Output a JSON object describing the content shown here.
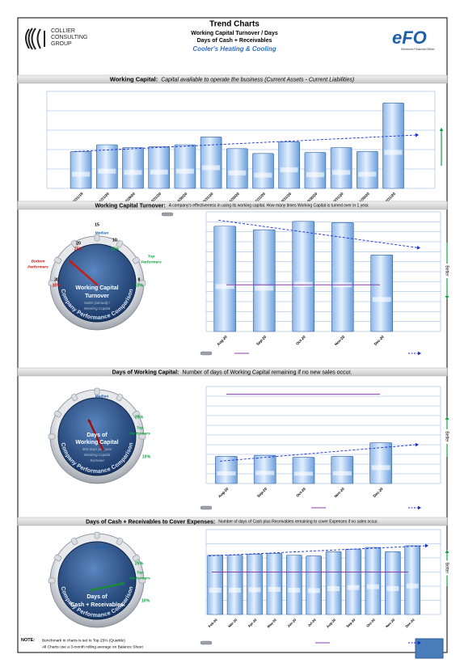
{
  "header": {
    "logo_lines": [
      "COLLIER",
      "CONSULTING",
      "GROUP"
    ],
    "title": "Trend Charts",
    "subtitle_lines": [
      "Working Capital Turnover / Days",
      "Days of Cash + Receivables"
    ],
    "company": "Cooler's Heating & Cooling",
    "efo_logo": "eFO",
    "efo_caption": "Electronic Financial Officer"
  },
  "chart_data": [
    {
      "type": "bar",
      "title": "Working Capital:",
      "subtitle": "Capital available to operate the business (Current Assets - Current Liabilities)",
      "categories": [
        "12/31/19",
        "1/31/20",
        "2/29/20",
        "3/31/20",
        "4/30/20",
        "5/31/20",
        "6/30/20",
        "7/31/20",
        "8/31/20",
        "9/30/20",
        "10/31/20",
        "11/30/20",
        "12/31/20"
      ],
      "values": [
        1.9,
        2.25,
        2.1,
        2.15,
        2.25,
        2.65,
        2.05,
        1.8,
        2.4,
        1.85,
        2.1,
        1.9,
        4.4
      ],
      "ylim": [
        0,
        5
      ],
      "trend": [
        1.9,
        2.75
      ],
      "grid": true,
      "better_direction": "up"
    },
    {
      "type": "bar",
      "title": "Working Capital Turnover:",
      "subtitle": "A company's effectiveness in using its working capital. How many times Working Capital is turned over in 1 year.",
      "categories": [
        "Aug-20",
        "Sep-20",
        "Oct-20",
        "Nov-20",
        "Dec-20"
      ],
      "values": [
        8.8,
        8.5,
        9.2,
        9.1,
        6.4
      ],
      "ylim": [
        0,
        10
      ],
      "benchmark": 3.9,
      "trend": [
        9.3,
        7.0
      ],
      "grid": true,
      "better_label": "Better",
      "better_direction": "down"
    },
    {
      "type": "bar",
      "title": "Days of Working Capital:",
      "subtitle": "Number of days of Working Capital remaining if no new sales occur.",
      "categories": [
        "Aug-20",
        "Sep-20",
        "Oct-20",
        "Nov-20",
        "Dec-20"
      ],
      "values": [
        2.8,
        2.9,
        2.7,
        2.8,
        4.2
      ],
      "ylim": [
        0,
        10
      ],
      "benchmark": 9.2,
      "trend": [
        2.3,
        4.0
      ],
      "grid": true,
      "better_label": "Better",
      "better_direction": "up"
    },
    {
      "type": "bar",
      "title": "Days of Cash + Receivables to Cover Expenses:",
      "subtitle": "Number of days of Cash plus Receivables remaining to cover Expenses if no sales occur.",
      "categories": [
        "Feb-20",
        "Mar-20",
        "Apr-20",
        "May-20",
        "Jun-20",
        "Jul-20",
        "Aug-20",
        "Sep-20",
        "Oct-20",
        "Nov-20",
        "Dec-20"
      ],
      "values": [
        7.0,
        7.0,
        7.1,
        7.2,
        7.0,
        6.9,
        7.4,
        7.7,
        7.9,
        7.4,
        8.1
      ],
      "ylim": [
        0,
        10
      ],
      "benchmark": 5.0,
      "trend": [
        6.9,
        8.1
      ],
      "grid": true,
      "better_label": "Better",
      "better_direction": "up"
    }
  ],
  "gauges": [
    {
      "labels": [
        {
          "text": "15",
          "color": "#000000"
        },
        {
          "text": "Median",
          "color": "#1f5fa8"
        },
        {
          "text": "20",
          "color": "#000000"
        },
        {
          "text": "25%",
          "color": "#d01010"
        },
        {
          "text": "10",
          "color": "#000000"
        },
        {
          "text": "25%",
          "color": "#10a040"
        },
        {
          "text": "Bottom",
          "color": "#d01010"
        },
        {
          "text": "Performers",
          "color": "#d01010"
        },
        {
          "text": "Top",
          "color": "#10a040"
        },
        {
          "text": "Performers",
          "color": "#10a040"
        },
        {
          "text": "30",
          "color": "#000000"
        },
        {
          "text": "10%",
          "color": "#d01010"
        },
        {
          "text": "8",
          "color": "#000000"
        },
        {
          "text": "10%",
          "color": "#10a040"
        }
      ],
      "center_lines": [
        "Working Capital",
        "Turnover"
      ],
      "formula_lines": [
        "Sales (annual) /",
        "Working Capital"
      ],
      "ring": "Company Performance Comparison",
      "needle_color": "#c0201a"
    },
    {
      "labels": [
        {
          "text": "Median",
          "color": "#1f5fa8"
        },
        {
          "text": "25%",
          "color": "#10a040"
        },
        {
          "text": "Top",
          "color": "#10a040"
        },
        {
          "text": "Performers",
          "color": "#10a040"
        },
        {
          "text": "10%",
          "color": "#10a040"
        }
      ],
      "center_lines": [
        "Days of",
        "Working Capital"
      ],
      "formula_lines": [
        "365 days per year",
        "Working Capital",
        "Turnover"
      ],
      "ring": "Company Performance Comparison",
      "needle_color": "#a01010"
    },
    {
      "labels": [
        {
          "text": "Median",
          "color": "#1f5fa8"
        },
        {
          "text": "25%",
          "color": "#10a040"
        },
        {
          "text": "Top",
          "color": "#10a040"
        },
        {
          "text": "Performers",
          "color": "#10a040"
        },
        {
          "text": "10%",
          "color": "#10a040"
        }
      ],
      "center_lines": [
        "Days of",
        "Cash + Receivables"
      ],
      "formula_lines": [],
      "ring": "Company Performance Comparison",
      "needle_color": "#1a8a3a"
    }
  ],
  "note": {
    "label": "NOTE:",
    "lines": [
      "Benchmark in charts is set to Top 25% (Quartile)",
      "All Charts use a 3-month rolling average on Balance Sheet"
    ]
  }
}
